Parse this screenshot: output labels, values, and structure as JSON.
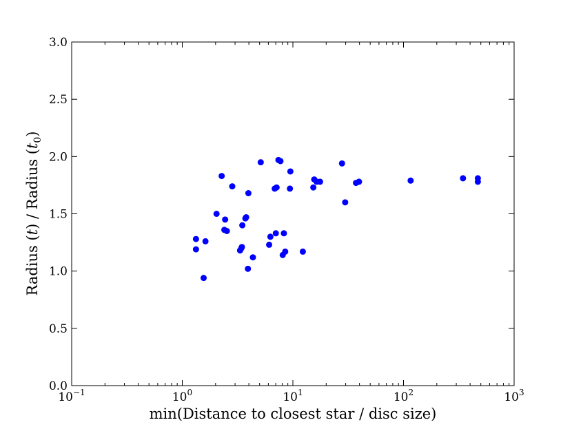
{
  "chart_data": {
    "type": "scatter",
    "title": "",
    "xlabel": "min(Distance to closest star / disc size)",
    "ylabel": "Radius (t) / Radius (t0)",
    "x_scale": "log",
    "xlim": [
      0.1,
      1000
    ],
    "ylim": [
      0.0,
      3.0
    ],
    "grid": false,
    "legend": "none",
    "marker_color": "#0000ff",
    "x_ticks": [
      {
        "value": 0.1,
        "base": "10",
        "exp": "−1"
      },
      {
        "value": 1,
        "base": "10",
        "exp": "0"
      },
      {
        "value": 10,
        "base": "10",
        "exp": "1"
      },
      {
        "value": 100,
        "base": "10",
        "exp": "2"
      },
      {
        "value": 1000,
        "base": "10",
        "exp": "3"
      }
    ],
    "y_ticks": [
      {
        "value": 0.0,
        "label": "0.0"
      },
      {
        "value": 0.5,
        "label": "0.5"
      },
      {
        "value": 1.0,
        "label": "1.0"
      },
      {
        "value": 1.5,
        "label": "1.5"
      },
      {
        "value": 2.0,
        "label": "2.0"
      },
      {
        "value": 2.5,
        "label": "2.5"
      },
      {
        "value": 3.0,
        "label": "3.0"
      }
    ],
    "points": [
      {
        "x": 1.33,
        "y": 1.28
      },
      {
        "x": 1.33,
        "y": 1.19
      },
      {
        "x": 1.56,
        "y": 0.94
      },
      {
        "x": 1.62,
        "y": 1.26
      },
      {
        "x": 2.04,
        "y": 1.5
      },
      {
        "x": 2.27,
        "y": 1.83
      },
      {
        "x": 2.4,
        "y": 1.36
      },
      {
        "x": 2.44,
        "y": 1.45
      },
      {
        "x": 2.53,
        "y": 1.35
      },
      {
        "x": 2.83,
        "y": 1.74
      },
      {
        "x": 3.33,
        "y": 1.18
      },
      {
        "x": 3.42,
        "y": 1.2
      },
      {
        "x": 3.46,
        "y": 1.21
      },
      {
        "x": 3.49,
        "y": 1.4
      },
      {
        "x": 3.72,
        "y": 1.46
      },
      {
        "x": 3.78,
        "y": 1.47
      },
      {
        "x": 3.92,
        "y": 1.02
      },
      {
        "x": 3.96,
        "y": 1.68
      },
      {
        "x": 4.35,
        "y": 1.12
      },
      {
        "x": 5.12,
        "y": 1.95
      },
      {
        "x": 6.1,
        "y": 1.23
      },
      {
        "x": 6.26,
        "y": 1.3
      },
      {
        "x": 6.85,
        "y": 1.72
      },
      {
        "x": 7.01,
        "y": 1.33
      },
      {
        "x": 7.12,
        "y": 1.73
      },
      {
        "x": 7.4,
        "y": 1.97
      },
      {
        "x": 7.72,
        "y": 1.96
      },
      {
        "x": 8.09,
        "y": 1.14
      },
      {
        "x": 8.29,
        "y": 1.33
      },
      {
        "x": 8.52,
        "y": 1.17
      },
      {
        "x": 9.4,
        "y": 1.72
      },
      {
        "x": 9.49,
        "y": 1.87
      },
      {
        "x": 12.3,
        "y": 1.17
      },
      {
        "x": 15.3,
        "y": 1.73
      },
      {
        "x": 15.6,
        "y": 1.8
      },
      {
        "x": 16.4,
        "y": 1.78
      },
      {
        "x": 17.6,
        "y": 1.78
      },
      {
        "x": 27.8,
        "y": 1.94
      },
      {
        "x": 29.7,
        "y": 1.6
      },
      {
        "x": 37.2,
        "y": 1.77
      },
      {
        "x": 39.6,
        "y": 1.78
      },
      {
        "x": 116,
        "y": 1.79
      },
      {
        "x": 345,
        "y": 1.81
      },
      {
        "x": 470,
        "y": 1.81
      },
      {
        "x": 470,
        "y": 1.78
      }
    ]
  }
}
